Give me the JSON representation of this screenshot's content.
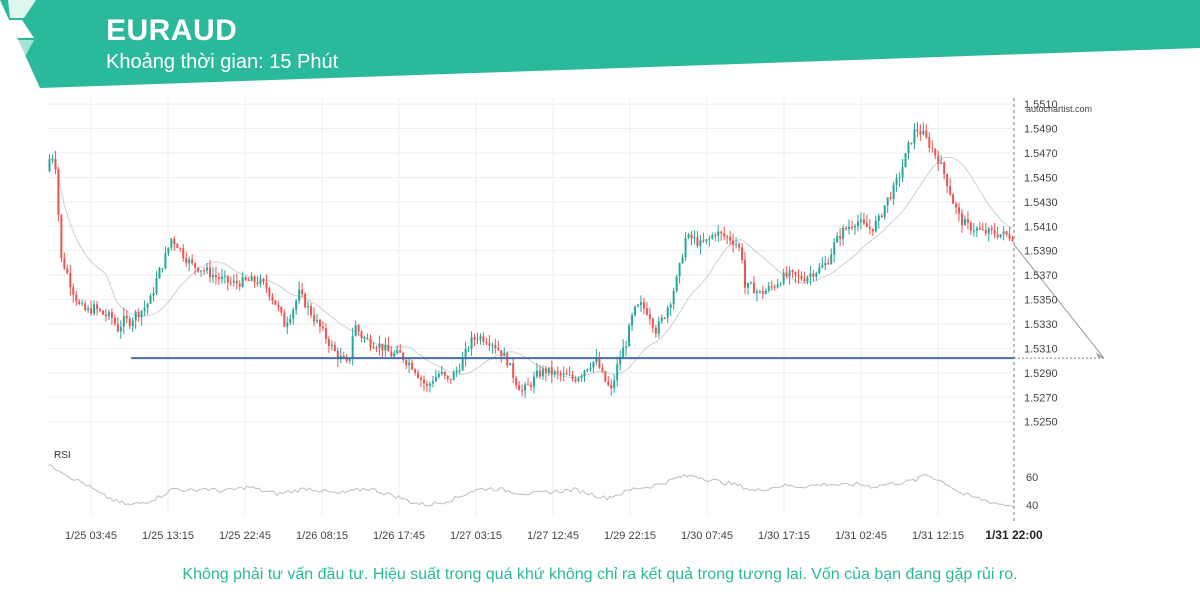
{
  "header": {
    "symbol": "EURAUD",
    "timeframe_label": "Khoảng thời gian: 15 Phút",
    "brand_color": "#2bb99b"
  },
  "footer": {
    "disclaimer": "Không phải tư vấn đầu tư. Hiệu suất trong quá khứ không chỉ ra kết quả trong tương lai. Vốn của bạn đang gặp rủi ro."
  },
  "chart_data": {
    "type": "candlestick",
    "watermark": "autochartist.com",
    "colors": {
      "up": "#26a69a",
      "down": "#ef5350",
      "level": "#4a6fa5",
      "ma": "#cfcfcf",
      "rsi": "#bdbdbd",
      "grid": "#eeeeee"
    },
    "y_axis": {
      "range": [
        1.5235,
        1.5515
      ],
      "ticks": [
        "1.5510",
        "1.5490",
        "1.5470",
        "1.5450",
        "1.5430",
        "1.5410",
        "1.5390",
        "1.5370",
        "1.5350",
        "1.5330",
        "1.5310",
        "1.5290",
        "1.5270",
        "1.5250"
      ]
    },
    "x_axis": {
      "ticks": [
        "1/25 03:45",
        "1/25 13:15",
        "1/25 22:45",
        "1/26 08:15",
        "1/26 17:45",
        "1/27 03:15",
        "1/27 12:45",
        "1/29 22:15",
        "1/30 07:45",
        "1/30 17:15",
        "1/31 02:45",
        "1/31 12:15"
      ],
      "last_label": "1/31 22:00"
    },
    "support_level": 1.5302,
    "projection": {
      "from": 1.5395,
      "to": 1.5302
    },
    "price_path": [
      [
        0,
        1.5455
      ],
      [
        3,
        1.547
      ],
      [
        5,
        1.5465
      ],
      [
        7,
        1.5455
      ],
      [
        9,
        1.5385
      ],
      [
        13,
        1.5375
      ],
      [
        17,
        1.536
      ],
      [
        22,
        1.5345
      ],
      [
        27,
        1.534
      ],
      [
        32,
        1.5343
      ],
      [
        38,
        1.5338
      ],
      [
        44,
        1.5335
      ],
      [
        48,
        1.5326
      ],
      [
        52,
        1.5333
      ],
      [
        56,
        1.5332
      ],
      [
        60,
        1.5338
      ],
      [
        65,
        1.5342
      ],
      [
        70,
        1.535
      ],
      [
        75,
        1.537
      ],
      [
        80,
        1.5385
      ],
      [
        84,
        1.54
      ],
      [
        88,
        1.5395
      ],
      [
        93,
        1.5385
      ],
      [
        98,
        1.5378
      ],
      [
        105,
        1.5375
      ],
      [
        115,
        1.5368
      ],
      [
        125,
        1.5363
      ],
      [
        135,
        1.5365
      ],
      [
        142,
        1.5365
      ],
      [
        148,
        1.536
      ],
      [
        155,
        1.5345
      ],
      [
        160,
        1.533
      ],
      [
        165,
        1.534
      ],
      [
        170,
        1.5355
      ],
      [
        175,
        1.5345
      ],
      [
        180,
        1.5335
      ],
      [
        185,
        1.5325
      ],
      [
        190,
        1.5315
      ],
      [
        195,
        1.5305
      ],
      [
        200,
        1.53
      ],
      [
        203,
        1.5295
      ],
      [
        207,
        1.533
      ],
      [
        212,
        1.532
      ],
      [
        218,
        1.5315
      ],
      [
        225,
        1.5312
      ],
      [
        232,
        1.5305
      ],
      [
        238,
        1.5305
      ],
      [
        242,
        1.53
      ],
      [
        247,
        1.5295
      ],
      [
        252,
        1.5285
      ],
      [
        256,
        1.5278
      ],
      [
        260,
        1.5285
      ],
      [
        265,
        1.529
      ],
      [
        270,
        1.5283
      ],
      [
        275,
        1.529
      ],
      [
        280,
        1.53
      ],
      [
        285,
        1.5315
      ],
      [
        290,
        1.532
      ],
      [
        295,
        1.5318
      ],
      [
        300,
        1.5315
      ],
      [
        305,
        1.5308
      ],
      [
        310,
        1.53
      ],
      [
        315,
        1.5285
      ],
      [
        320,
        1.5275
      ],
      [
        325,
        1.528
      ],
      [
        330,
        1.5288
      ],
      [
        335,
        1.5292
      ],
      [
        340,
        1.529
      ],
      [
        345,
        1.5288
      ],
      [
        350,
        1.5287
      ],
      [
        355,
        1.5285
      ],
      [
        360,
        1.529
      ],
      [
        365,
        1.5297
      ],
      [
        370,
        1.53
      ],
      [
        375,
        1.5285
      ],
      [
        380,
        1.5275
      ],
      [
        385,
        1.53
      ],
      [
        390,
        1.5315
      ],
      [
        395,
        1.534
      ],
      [
        400,
        1.5345
      ],
      [
        405,
        1.534
      ],
      [
        410,
        1.5325
      ],
      [
        415,
        1.5335
      ],
      [
        420,
        1.535
      ],
      [
        425,
        1.537
      ],
      [
        430,
        1.54
      ],
      [
        435,
        1.54
      ],
      [
        440,
        1.5395
      ],
      [
        445,
        1.5398
      ],
      [
        450,
        1.5405
      ],
      [
        455,
        1.5402
      ],
      [
        460,
        1.54
      ],
      [
        465,
        1.5395
      ],
      [
        468,
        1.5385
      ],
      [
        470,
        1.536
      ],
      [
        475,
        1.536
      ],
      [
        480,
        1.5355
      ],
      [
        485,
        1.5358
      ],
      [
        490,
        1.5362
      ],
      [
        495,
        1.5368
      ],
      [
        500,
        1.537
      ],
      [
        505,
        1.5368
      ],
      [
        510,
        1.5368
      ],
      [
        515,
        1.5372
      ],
      [
        520,
        1.5375
      ],
      [
        525,
        1.538
      ],
      [
        530,
        1.5395
      ],
      [
        535,
        1.5405
      ],
      [
        540,
        1.541
      ],
      [
        545,
        1.5415
      ],
      [
        550,
        1.541
      ],
      [
        555,
        1.5408
      ],
      [
        560,
        1.5415
      ],
      [
        565,
        1.543
      ],
      [
        570,
        1.544
      ],
      [
        575,
        1.5455
      ],
      [
        580,
        1.5475
      ],
      [
        585,
        1.549
      ],
      [
        590,
        1.5485
      ],
      [
        595,
        1.5475
      ],
      [
        600,
        1.5465
      ],
      [
        605,
        1.545
      ],
      [
        610,
        1.543
      ],
      [
        615,
        1.5415
      ],
      [
        620,
        1.541
      ],
      [
        625,
        1.5408
      ],
      [
        630,
        1.5405
      ],
      [
        635,
        1.5405
      ],
      [
        640,
        1.5404
      ],
      [
        645,
        1.5403
      ],
      [
        650,
        1.5402
      ]
    ],
    "rsi": {
      "label": "RSI",
      "ticks": [
        "60",
        "40"
      ],
      "range": [
        33,
        72
      ],
      "path": [
        [
          0,
          68
        ],
        [
          8,
          65
        ],
        [
          15,
          60
        ],
        [
          25,
          55
        ],
        [
          35,
          48
        ],
        [
          45,
          43
        ],
        [
          55,
          40
        ],
        [
          65,
          42
        ],
        [
          75,
          46
        ],
        [
          85,
          52
        ],
        [
          95,
          50
        ],
        [
          105,
          52
        ],
        [
          115,
          50
        ],
        [
          125,
          51
        ],
        [
          135,
          53
        ],
        [
          145,
          50
        ],
        [
          155,
          48
        ],
        [
          165,
          50
        ],
        [
          175,
          52
        ],
        [
          185,
          50
        ],
        [
          195,
          48
        ],
        [
          205,
          50
        ],
        [
          215,
          52
        ],
        [
          225,
          49
        ],
        [
          235,
          46
        ],
        [
          245,
          42
        ],
        [
          255,
          40
        ],
        [
          265,
          42
        ],
        [
          275,
          45
        ],
        [
          285,
          50
        ],
        [
          295,
          52
        ],
        [
          305,
          51
        ],
        [
          315,
          49
        ],
        [
          325,
          48
        ],
        [
          335,
          49
        ],
        [
          345,
          50
        ],
        [
          355,
          51
        ],
        [
          365,
          48
        ],
        [
          375,
          45
        ],
        [
          385,
          48
        ],
        [
          395,
          52
        ],
        [
          405,
          53
        ],
        [
          415,
          56
        ],
        [
          425,
          60
        ],
        [
          435,
          61
        ],
        [
          445,
          58
        ],
        [
          455,
          56
        ],
        [
          465,
          54
        ],
        [
          475,
          50
        ],
        [
          485,
          52
        ],
        [
          495,
          54
        ],
        [
          505,
          53
        ],
        [
          515,
          54
        ],
        [
          525,
          55
        ],
        [
          535,
          54
        ],
        [
          545,
          55
        ],
        [
          555,
          53
        ],
        [
          565,
          55
        ],
        [
          575,
          56
        ],
        [
          585,
          58
        ],
        [
          590,
          62
        ],
        [
          595,
          60
        ],
        [
          605,
          55
        ],
        [
          615,
          48
        ],
        [
          625,
          45
        ],
        [
          635,
          42
        ],
        [
          645,
          40
        ],
        [
          650,
          40
        ]
      ]
    }
  }
}
